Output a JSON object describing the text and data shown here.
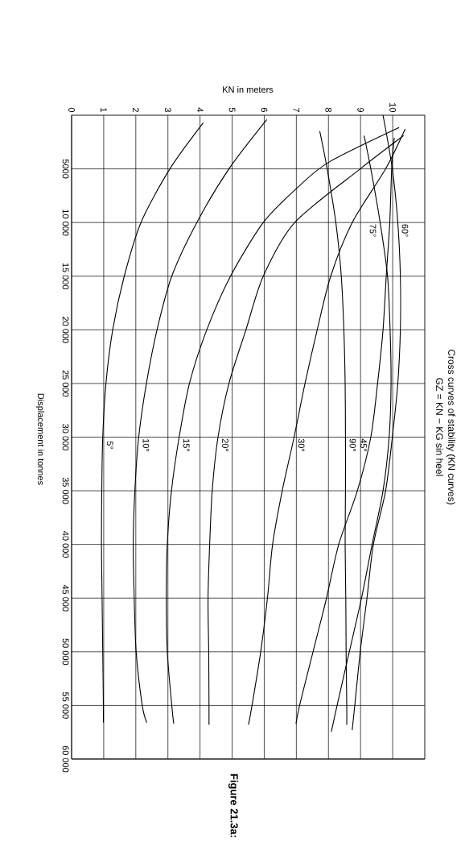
{
  "chart_data": {
    "type": "line",
    "title": "Cross curves of stability (KN curves)",
    "subtitle": "GZ = KN − KG sin heel",
    "xlabel": "KN in meters",
    "ylabel": "Displacement in tonnes",
    "annotations": [
      {
        "text": "5°",
        "x": 0.97,
        "y": 30000
      },
      {
        "text": "10°",
        "x": 2.09,
        "y": 30000
      },
      {
        "text": "15°",
        "x": 3.35,
        "y": 30000
      },
      {
        "text": "20°",
        "x": 4.56,
        "y": 30000
      },
      {
        "text": "30°",
        "x": 6.93,
        "y": 30000
      },
      {
        "text": "90°",
        "x": 8.53,
        "y": 30000
      },
      {
        "text": "45°",
        "x": 9.32,
        "y": 30000
      },
      {
        "text": "75°",
        "x": 9.61,
        "y": 10000
      },
      {
        "text": "60°",
        "x": 10.16,
        "y": 10000
      },
      "Figure 21.3a:"
    ],
    "xlim": [
      0,
      11
    ],
    "ylim": [
      60000,
      0
    ],
    "xticks": [
      0,
      1,
      2,
      3,
      4,
      5,
      6,
      7,
      8,
      9,
      10
    ],
    "yticks": [
      {
        "value": 5000,
        "label": "5000"
      },
      {
        "value": 10000,
        "label": "10 000"
      },
      {
        "value": 15000,
        "label": "15 000"
      },
      {
        "value": 20000,
        "label": "20 000"
      },
      {
        "value": 25000,
        "label": "25 000"
      },
      {
        "value": 30000,
        "label": "30 000"
      },
      {
        "value": 35000,
        "label": "35 000"
      },
      {
        "value": 40000,
        "label": "40 000"
      },
      {
        "value": 45000,
        "label": "45 000"
      },
      {
        "value": 50000,
        "label": "50 000"
      },
      {
        "value": 55000,
        "label": "55 000"
      },
      {
        "value": 60000,
        "label": "60 000"
      }
    ],
    "grid": true,
    "series": [
      {
        "color": "#000000",
        "x": [
          4.1,
          3.06,
          2.16,
          1.64,
          1.28,
          1.07,
          0.97,
          0.94,
          0.93,
          0.95,
          0.97,
          0.99,
          0.99
        ],
        "values": [
          700,
          5000,
          10000,
          15000,
          20000,
          25000,
          30000,
          35000,
          40000,
          45000,
          50000,
          55000,
          56600
        ]
      },
      {
        "color": "#000000",
        "x": [
          6.08,
          4.9,
          3.9,
          3.12,
          2.66,
          2.33,
          2.09,
          1.97,
          1.92,
          1.95,
          2.01,
          2.2,
          2.34
        ],
        "values": [
          400,
          5000,
          10000,
          15000,
          20000,
          25000,
          30000,
          35000,
          40000,
          45000,
          50000,
          55000,
          56600
        ]
      },
      {
        "color": "#000000",
        "x": [
          10.2,
          8.0,
          6.98,
          5.97,
          4.95,
          4.21,
          3.67,
          3.35,
          3.11,
          2.98,
          2.95,
          2.98,
          3.12,
          3.18
        ],
        "values": [
          1150,
          4400,
          6900,
          10000,
          15000,
          20000,
          25000,
          30000,
          35000,
          40000,
          45000,
          50000,
          55000,
          56700
        ]
      },
      {
        "color": "#000000",
        "x": [
          10.34,
          8.99,
          6.95,
          5.97,
          5.43,
          4.9,
          4.56,
          4.38,
          4.3,
          4.25,
          4.27,
          4.28,
          4.28
        ],
        "values": [
          1900,
          5000,
          10000,
          15000,
          20000,
          25000,
          30000,
          35000,
          40000,
          45000,
          50000,
          55000,
          56800
        ]
      },
      {
        "color": "#000000",
        "x": [
          10.39,
          9.78,
          8.74,
          8.07,
          7.65,
          7.27,
          6.93,
          6.56,
          6.26,
          6.1,
          5.89,
          5.62,
          5.51
        ],
        "values": [
          1270,
          5000,
          10000,
          15000,
          20000,
          25000,
          30000,
          35000,
          40000,
          45000,
          50000,
          55000,
          56800
        ]
      },
      {
        "color": "#000000",
        "x": [
          10.05,
          9.97,
          9.91,
          9.8,
          9.7,
          9.53,
          9.32,
          8.9,
          8.32,
          7.94,
          7.52,
          7.1,
          6.99
        ],
        "values": [
          2100,
          5000,
          10000,
          15000,
          20000,
          25000,
          30000,
          35000,
          40000,
          45000,
          50000,
          55000,
          56700
        ]
      },
      {
        "color": "#000000",
        "x": [
          9.7,
          9.99,
          10.16,
          10.24,
          10.24,
          10.16,
          9.99,
          9.78,
          9.4,
          9.2,
          8.99,
          8.82,
          8.74
        ],
        "values": [
          0,
          5000,
          10000,
          15000,
          20000,
          25000,
          30000,
          35000,
          40000,
          45000,
          50000,
          55000,
          57300
        ]
      },
      {
        "color": "#000000",
        "x": [
          9.11,
          9.32,
          9.61,
          9.84,
          9.92,
          9.95,
          9.89,
          9.7,
          9.36,
          9.03,
          8.65,
          8.27,
          8.09
        ],
        "values": [
          1900,
          5000,
          10000,
          15000,
          20000,
          25000,
          30000,
          35000,
          40000,
          45000,
          50000,
          55000,
          57460
        ]
      },
      {
        "color": "#000000",
        "x": [
          7.73,
          7.96,
          8.23,
          8.4,
          8.48,
          8.52,
          8.53,
          8.53,
          8.52,
          8.54,
          8.55,
          8.57,
          8.57
        ],
        "values": [
          1500,
          5000,
          10000,
          15000,
          20000,
          25000,
          30000,
          35000,
          40000,
          45000,
          50000,
          55000,
          56800
        ]
      }
    ]
  }
}
